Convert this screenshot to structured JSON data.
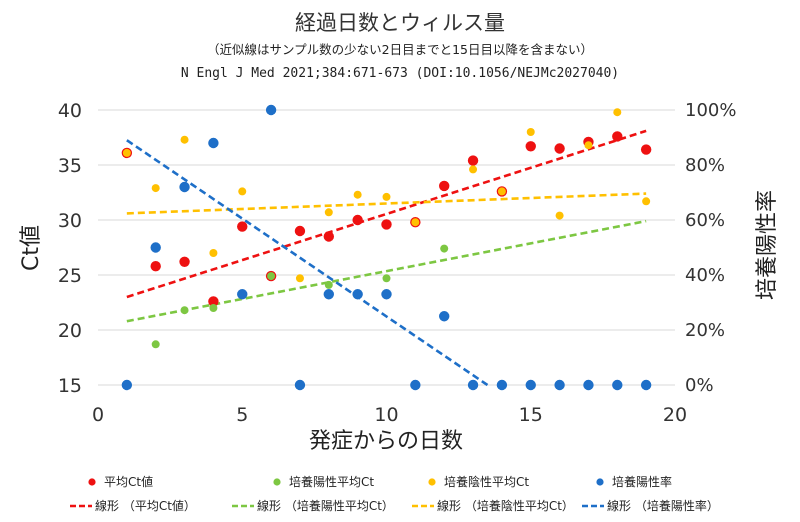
{
  "chart_data": {
    "type": "scatter",
    "title": "経過日数とウィルス量",
    "subtitle": "（近似線はサンプル数の少ない2日目までと15日目以降を含まない）",
    "citation": "N Engl J Med 2021;384:671-673 (DOI:10.1056/NEJMc2027040)",
    "xlabel": "発症からの日数",
    "ylabel": "Ct値",
    "y2label": "培養陽性率",
    "xlim": [
      0,
      20
    ],
    "ylim": [
      15,
      40
    ],
    "y2lim": [
      0,
      100
    ],
    "xticks": [
      "0",
      "5",
      "10",
      "15",
      "20"
    ],
    "yticks": [
      "15",
      "20",
      "25",
      "30",
      "35",
      "40"
    ],
    "y2ticks": [
      "0%",
      "20%",
      "40%",
      "60%",
      "80%",
      "100%"
    ],
    "series": [
      {
        "name": "平均Ct値",
        "color": "#ee1111",
        "axis": "left",
        "x": [
          1,
          2,
          3,
          4,
          5,
          6,
          7,
          8,
          9,
          10,
          11,
          12,
          13,
          14,
          15,
          16,
          17,
          18,
          19
        ],
        "y": [
          36.1,
          25.8,
          26.2,
          22.6,
          29.4,
          24.9,
          29.0,
          28.5,
          30.0,
          29.6,
          29.8,
          33.1,
          35.4,
          32.6,
          36.7,
          36.5,
          37.1,
          37.6,
          36.4
        ]
      },
      {
        "name": "培養陽性平均Ct",
        "color": "#7dc742",
        "axis": "left",
        "x": [
          2,
          3,
          4,
          6,
          8,
          10,
          12
        ],
        "y": [
          18.7,
          21.8,
          22.0,
          24.9,
          24.1,
          24.7,
          27.4
        ]
      },
      {
        "name": "培養陰性平均Ct",
        "color": "#ffc000",
        "axis": "left",
        "x": [
          1,
          2,
          3,
          4,
          5,
          7,
          8,
          9,
          10,
          11,
          13,
          14,
          15,
          16,
          17,
          18,
          19
        ],
        "y": [
          36.1,
          32.9,
          37.3,
          27.0,
          32.6,
          24.7,
          30.7,
          32.3,
          32.1,
          29.8,
          34.6,
          32.6,
          38.0,
          30.4,
          36.8,
          39.8,
          31.7
        ]
      },
      {
        "name": "培養陽性率",
        "color": "#1e6fc8",
        "axis": "right",
        "x": [
          1,
          2,
          3,
          4,
          5,
          6,
          7,
          8,
          9,
          10,
          11,
          12,
          13,
          14,
          15,
          16,
          17,
          18,
          19
        ],
        "y": [
          0,
          50,
          72,
          88,
          33,
          100,
          0,
          33,
          33,
          33,
          0,
          25,
          0,
          0,
          0,
          0,
          0,
          0,
          0
        ]
      }
    ],
    "trendlines": [
      {
        "name": "線形 （平均Ct値）",
        "color": "#ee1111",
        "axis": "left",
        "x": [
          1,
          19
        ],
        "y": [
          23.0,
          38.1
        ]
      },
      {
        "name": "線形 （培養陽性平均Ct）",
        "color": "#7dc742",
        "axis": "left",
        "x": [
          1,
          19
        ],
        "y": [
          20.8,
          29.9
        ]
      },
      {
        "name": "線形 （培養陰性平均Ct）",
        "color": "#ffc000",
        "axis": "left",
        "x": [
          1,
          19
        ],
        "y": [
          30.6,
          32.4
        ]
      },
      {
        "name": "線形 （培養陽性率）",
        "color": "#1e6fc8",
        "axis": "right",
        "x": [
          1,
          13.5
        ],
        "y": [
          89,
          0
        ]
      }
    ]
  }
}
